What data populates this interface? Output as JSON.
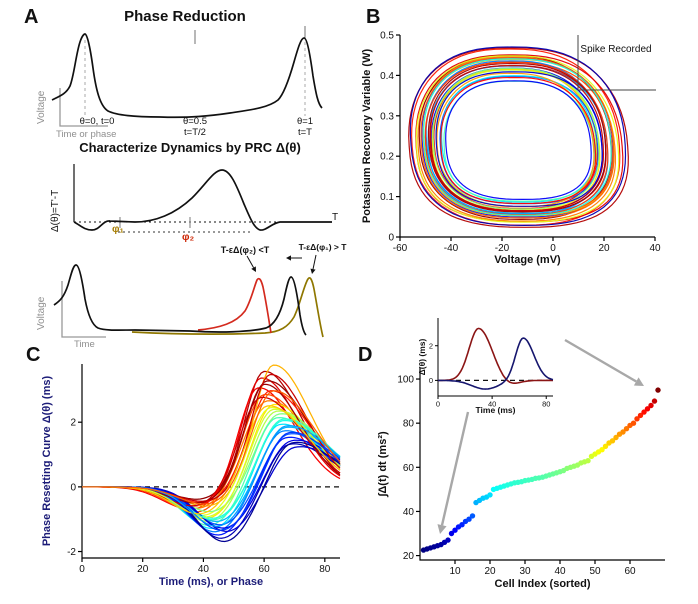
{
  "panels": {
    "A": "A",
    "B": "B",
    "C": "C",
    "D": "D"
  },
  "panelA": {
    "title": "Phase Reduction",
    "subtitle": "Characterize Dynamics by PRC Δ(θ)",
    "trace_axis": {
      "ylabel": "Voltage",
      "xlabel": "Time or phase"
    },
    "theta_marks": {
      "start": "θ=0, t=0",
      "mid1": "θ=0.5",
      "mid2": "t=T/2",
      "end1": "θ=1",
      "end2": "t=T"
    },
    "prc": {
      "ylabel": "Δ(θ)=T'-T",
      "t_label": "T",
      "phi1": "φ₁",
      "phi2": "φ₂",
      "phi1_color": "#a67c00",
      "phi2_color": "#cc2200"
    },
    "perturb": {
      "ylabel": "Voltage",
      "xlabel": "Time",
      "annot_advance": "T-εΔ(φ₂) <T",
      "annot_delay": "T-εΔ(φ₁) > T",
      "advance_color": "#d42a1e",
      "delay_color": "#8f7700"
    }
  },
  "chart_data": [
    {
      "id": "B",
      "type": "line-family",
      "xlabel": "Voltage (mV)",
      "ylabel": "Potassium Recovery Variable (W)",
      "xlim": [
        -60,
        40
      ],
      "ylim": [
        0,
        0.5
      ],
      "xticks": [
        -60,
        -40,
        -20,
        0,
        20,
        40
      ],
      "yticks": [
        0,
        0.1,
        0.2,
        0.3,
        0.4,
        0.5
      ],
      "annotation": {
        "text": "Spike Recorded"
      },
      "center": [
        -14,
        0.225
      ],
      "rx_base": 38,
      "ry_base": 0.2,
      "curves": [
        [
          1.12,
          0.95,
          0.3,
          -0.2
        ],
        [
          1.08,
          0.85,
          -0.4,
          0.1
        ],
        [
          1.1,
          0.05,
          0.2,
          0.4
        ],
        [
          1.05,
          0.9,
          0.5,
          -0.3
        ],
        [
          1.02,
          0.75,
          -0.2,
          -0.4
        ],
        [
          0.98,
          0.15,
          0.1,
          0.3
        ],
        [
          1.0,
          0.98,
          -0.5,
          0.2
        ],
        [
          0.95,
          0.8,
          0.4,
          0.0
        ],
        [
          0.93,
          0.25,
          -0.3,
          0.5
        ],
        [
          1.04,
          0.6,
          0.0,
          -0.5
        ],
        [
          0.9,
          0.92,
          0.2,
          0.2
        ],
        [
          0.88,
          0.1,
          -0.1,
          -0.1
        ],
        [
          0.97,
          0.7,
          0.35,
          0.25
        ],
        [
          0.85,
          0.88,
          -0.45,
          0.15
        ],
        [
          0.92,
          0.3,
          0.15,
          -0.35
        ],
        [
          0.83,
          0.55,
          -0.25,
          0.45
        ],
        [
          0.99,
          0.78,
          0.05,
          0.1
        ],
        [
          0.8,
          0.2,
          0.45,
          -0.15
        ],
        [
          0.87,
          0.65,
          -0.35,
          -0.25
        ],
        [
          0.78,
          0.35,
          0.25,
          0.35
        ],
        [
          0.94,
          0.82,
          -0.15,
          0.05
        ],
        [
          0.76,
          0.45,
          0.4,
          -0.45
        ],
        [
          0.89,
          0.93,
          -0.05,
          0.3
        ],
        [
          0.74,
          0.12,
          0.3,
          0.0
        ],
        [
          0.82,
          0.72,
          -0.5,
          -0.2
        ],
        [
          0.96,
          0.4,
          0.1,
          0.5
        ],
        [
          0.79,
          0.87,
          0.2,
          -0.3
        ],
        [
          0.86,
          0.5,
          -0.3,
          0.2
        ],
        [
          0.91,
          0.96,
          0.0,
          0.4
        ],
        [
          0.84,
          0.08,
          0.5,
          0.1
        ]
      ]
    },
    {
      "id": "C",
      "type": "prc-family",
      "xlabel": "Time (ms), or Phase",
      "ylabel": "Phase Resetting Curve Δ(θ) (ms)",
      "label_color": "#1c1c78",
      "xlim": [
        0,
        85
      ],
      "ylim": [
        -2.2,
        3.8
      ],
      "xticks": [
        0,
        20,
        40,
        60,
        80
      ],
      "yticks": [
        -2,
        0,
        2
      ],
      "zero_line": true,
      "curves": [
        [
          3.6,
          0.5,
          60,
          9,
          0.95
        ],
        [
          3.4,
          0.6,
          59,
          9,
          0.9
        ],
        [
          3.3,
          0.4,
          61,
          10,
          0.98
        ],
        [
          3.1,
          0.7,
          58,
          9,
          0.88
        ],
        [
          3.0,
          0.5,
          62,
          10,
          0.85
        ],
        [
          2.9,
          0.8,
          60,
          10,
          0.8
        ],
        [
          3.8,
          0.6,
          63,
          9,
          0.7
        ],
        [
          2.7,
          0.7,
          61,
          11,
          0.75
        ],
        [
          2.6,
          1.0,
          63,
          10,
          0.65
        ],
        [
          2.5,
          0.9,
          62,
          10,
          0.6
        ],
        [
          2.4,
          1.1,
          64,
          11,
          0.55
        ],
        [
          2.3,
          0.8,
          65,
          11,
          0.5
        ],
        [
          2.2,
          1.2,
          64,
          10,
          0.45
        ],
        [
          2.1,
          1.0,
          66,
          11,
          0.4
        ],
        [
          2.0,
          1.3,
          65,
          10,
          0.35
        ],
        [
          1.9,
          1.1,
          67,
          11,
          0.3
        ],
        [
          1.8,
          1.4,
          66,
          10,
          0.25
        ],
        [
          1.7,
          1.2,
          68,
          11,
          0.2
        ],
        [
          1.6,
          1.5,
          67,
          10,
          0.15
        ],
        [
          1.5,
          1.3,
          69,
          11,
          0.1
        ],
        [
          1.4,
          1.6,
          68,
          10,
          0.05
        ],
        [
          1.3,
          1.4,
          70,
          11,
          0.08
        ],
        [
          2.8,
          0.6,
          59,
          10,
          0.92
        ],
        [
          3.2,
          0.5,
          60,
          9,
          0.97
        ],
        [
          2.45,
          0.95,
          63,
          10,
          0.58
        ],
        [
          1.45,
          1.7,
          69,
          10,
          0.02
        ],
        [
          3.5,
          0.45,
          62,
          9,
          0.93
        ],
        [
          2.15,
          1.05,
          66,
          11,
          0.42
        ],
        [
          1.75,
          1.35,
          68,
          10,
          0.18
        ],
        [
          2.55,
          0.85,
          61,
          10,
          0.68
        ],
        [
          1.95,
          1.25,
          67,
          11,
          0.28
        ],
        [
          3.0,
          0.55,
          63,
          10,
          0.78
        ]
      ]
    },
    {
      "id": "D",
      "type": "scatter",
      "xlabel": "Cell Index (sorted)",
      "ylabel": "∫Δ(t) dt  (ms²)",
      "xlim": [
        0,
        70
      ],
      "ylim": [
        18,
        105
      ],
      "xticks": [
        10,
        20,
        30,
        40,
        50,
        60
      ],
      "yticks": [
        20,
        40,
        60,
        80,
        100
      ],
      "values": [
        22.5,
        23,
        23.5,
        24,
        24.5,
        25,
        26,
        27,
        30,
        31.5,
        33,
        34,
        35.5,
        36.5,
        38,
        44,
        45,
        46,
        46.5,
        47.5,
        50,
        50.5,
        51,
        51.5,
        52,
        52.5,
        53,
        53.2,
        53.5,
        54,
        54.2,
        54.5,
        55,
        55.2,
        55.5,
        56,
        56.5,
        57,
        57.5,
        58,
        58.5,
        59.5,
        60,
        60.5,
        61,
        62,
        62.5,
        63,
        65,
        66,
        67,
        68,
        69.5,
        71,
        72,
        73.5,
        75,
        76,
        77.5,
        79,
        80,
        82,
        83.5,
        85,
        86.5,
        88,
        90,
        95
      ]
    },
    {
      "id": "Dinset",
      "type": "inset-lines",
      "xlabel": "Time (ms)",
      "ylabel": "Δ(θ) (ms)",
      "xlim": [
        0,
        85
      ],
      "ylim": [
        -0.9,
        3.6
      ],
      "xticks": [
        0,
        40,
        80
      ],
      "yticks": [
        0,
        2
      ],
      "zero_line": true,
      "curves2": [
        {
          "color": "#8b1515",
          "a": 3.0,
          "p": 30,
          "w": 10,
          "wr": 14,
          "d": 0.3,
          "dp": 52,
          "dw": 10
        },
        {
          "color": "#16166e",
          "a": 2.45,
          "p": 63,
          "w": 8,
          "wr": 11,
          "d": 0.5,
          "dp": 35,
          "dw": 14
        }
      ]
    }
  ]
}
